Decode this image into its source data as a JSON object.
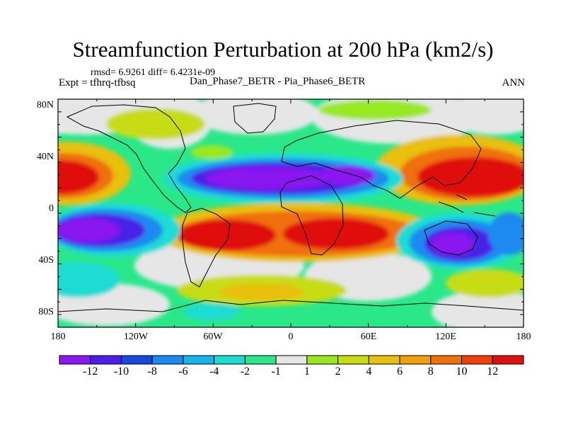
{
  "title": "Streamfunction Perturbation at 200 hPa (km2/s)",
  "stats": "rmsd= 6.9261 diff= 6.4231e-09",
  "expt": "Expt = tfhrq-tfbsq",
  "runs": "Dan_Phase7_BETR - Pia_Phase6_BETR",
  "season": "ANN",
  "lat_labels": [
    "80N",
    "40N",
    "0",
    "40S",
    "80S"
  ],
  "lon_labels": [
    "180",
    "120W",
    "60W",
    "0",
    "60E",
    "120E",
    "180"
  ],
  "colorbar": {
    "colors": [
      "#8a18f0",
      "#4a20e8",
      "#1848e0",
      "#1a8af0",
      "#15b4ec",
      "#1cdcd4",
      "#2ae88a",
      "#e6e6e6",
      "#98e820",
      "#c8dc14",
      "#e8c010",
      "#f0a008",
      "#f07008",
      "#ee4008",
      "#e01010"
    ],
    "labels": [
      "-12",
      "-10",
      "-8",
      "-6",
      "-4",
      "-2",
      "-1",
      "1",
      "2",
      "4",
      "6",
      "8",
      "10",
      "12"
    ]
  }
}
